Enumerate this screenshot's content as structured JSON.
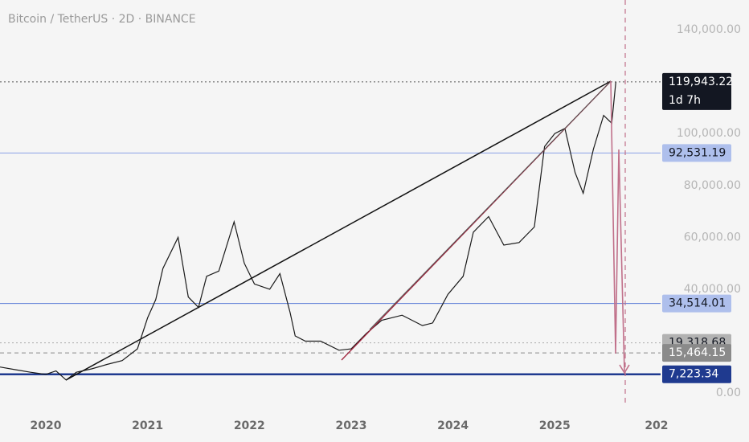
{
  "chart_data": {
    "type": "line",
    "title": "Bitcoin / TetherUS · 2D · BINANCE",
    "x": [
      2019.55,
      2019.7,
      2019.85,
      2020.0,
      2020.1,
      2020.2,
      2020.3,
      2020.45,
      2020.6,
      2020.75,
      2020.9,
      2021.0,
      2021.08,
      2021.15,
      2021.3,
      2021.4,
      2021.5,
      2021.58,
      2021.7,
      2021.85,
      2021.95,
      2022.05,
      2022.2,
      2022.3,
      2022.4,
      2022.45,
      2022.55,
      2022.7,
      2022.88,
      2023.0,
      2023.15,
      2023.3,
      2023.5,
      2023.7,
      2023.8,
      2023.95,
      2024.1,
      2024.2,
      2024.35,
      2024.5,
      2024.65,
      2024.8,
      2024.9,
      2025.0,
      2025.1,
      2025.2,
      2025.28,
      2025.38,
      2025.48,
      2025.56,
      2025.6
    ],
    "values": [
      10000,
      9000,
      8000,
      7200,
      8500,
      5000,
      8000,
      9300,
      11000,
      12500,
      17000,
      29000,
      36000,
      48000,
      60000,
      37000,
      33000,
      45000,
      47000,
      66000,
      50000,
      42000,
      40000,
      46000,
      31000,
      22000,
      20000,
      20000,
      16500,
      17000,
      23000,
      28000,
      30000,
      26000,
      27000,
      38000,
      45000,
      62000,
      68000,
      57000,
      58000,
      64000,
      95000,
      100000,
      102000,
      85000,
      77000,
      94000,
      107000,
      104000,
      119943.22
    ],
    "color": "#1a1a1a",
    "xlim": [
      2019.55,
      2026.04
    ],
    "ylim": [
      -6500,
      151500
    ],
    "xticks": [
      2020,
      2021,
      2022,
      2023,
      2024,
      2025,
      {
        "value": 2026,
        "label": "202"
      }
    ],
    "yticks": [
      {
        "value": 0,
        "label": "0.00"
      },
      {
        "value": 40000,
        "label": "40,000.00"
      },
      {
        "value": 60000,
        "label": "60,000.00"
      },
      {
        "value": 80000,
        "label": "80,000.00"
      },
      {
        "value": 100000,
        "label": "100,000.00"
      },
      {
        "value": 140000,
        "label": "140,000.00"
      }
    ],
    "price_lines": {
      "values": [
        119943.22,
        92531.19,
        34514.01,
        19318.68,
        15464.15,
        7223.34
      ],
      "value_labels": [
        "119,943.22",
        "92,531.19",
        "34,514.01",
        "19,318.68",
        "15,464.15",
        "7,223.34"
      ],
      "colors": [
        "#131722",
        "#aebfec",
        "#aebfec",
        "#b2b2b2",
        "#8a8a8a",
        "#1f3a8f"
      ],
      "line_colors": [
        "#555555",
        "#8aa2e6",
        "#5a7bd6",
        "#aaaaaa",
        "#888888",
        "#1f3a8f"
      ],
      "styles": [
        "dotted",
        "solid",
        "solid",
        "dotted",
        "dashed",
        "thick"
      ]
    },
    "countdown": "1d 7h"
  }
}
